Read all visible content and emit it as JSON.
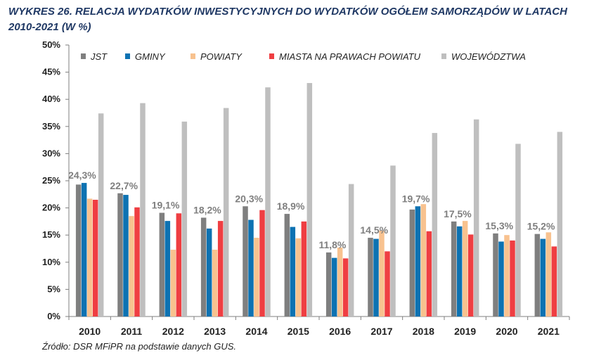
{
  "title": "WYKRES 26. RELACJA WYDATKÓW INWESTYCYJNYCH DO WYDATKÓW OGÓŁEM SAMORZĄDÓW W LATACH 2010-2021 (W %)",
  "source": "Źródło: DSR MFiPR na podstawie danych GUS.",
  "chart_data": {
    "type": "bar",
    "title": "WYKRES 26. RELACJA WYDATKÓW INWESTYCYJNYCH DO WYDATKÓW OGÓŁEM SAMORZĄDÓW W LATACH 2010-2021 (W %)",
    "categories": [
      "2010",
      "2011",
      "2012",
      "2013",
      "2014",
      "2015",
      "2016",
      "2017",
      "2018",
      "2019",
      "2020",
      "2021"
    ],
    "ylim": [
      0,
      50
    ],
    "yticks": [
      "0%",
      "5%",
      "10%",
      "15%",
      "20%",
      "25%",
      "30%",
      "35%",
      "40%",
      "45%",
      "50%"
    ],
    "grid": false,
    "legend_position": "top",
    "series": [
      {
        "name": "JST",
        "color": "#7f7f7f",
        "values": [
          24.3,
          22.7,
          19.1,
          18.2,
          20.3,
          18.9,
          11.8,
          14.5,
          19.7,
          17.5,
          15.3,
          15.2
        ],
        "labels": [
          "24,3%",
          "22,7%",
          "19,1%",
          "18,2%",
          "20,3%",
          "18,9%",
          "11,8%",
          "14,5%",
          "19,7%",
          "17,5%",
          "15,3%",
          "15,2%"
        ]
      },
      {
        "name": "GMINY",
        "color": "#0d72b2",
        "values": [
          24.6,
          22.4,
          17.6,
          16.2,
          17.8,
          16.5,
          10.8,
          14.3,
          20.3,
          16.6,
          13.8,
          14.3
        ]
      },
      {
        "name": "POWIATY",
        "color": "#f8c28f",
        "values": [
          21.7,
          18.5,
          12.3,
          12.3,
          14.5,
          14.4,
          12.7,
          15.8,
          20.7,
          17.6,
          15.0,
          15.5
        ]
      },
      {
        "name": "MIASTA NA PRAWACH POWIATU",
        "color": "#ef3e42",
        "values": [
          21.5,
          20.1,
          19.0,
          17.6,
          19.6,
          17.5,
          10.7,
          12.0,
          15.7,
          15.1,
          14.0,
          12.9
        ]
      },
      {
        "name": "WOJEWÓDZTWA",
        "color": "#bfbfbf",
        "values": [
          37.4,
          39.3,
          35.9,
          38.4,
          42.2,
          43.0,
          24.4,
          27.8,
          33.8,
          36.3,
          31.8,
          34.0
        ]
      }
    ]
  }
}
